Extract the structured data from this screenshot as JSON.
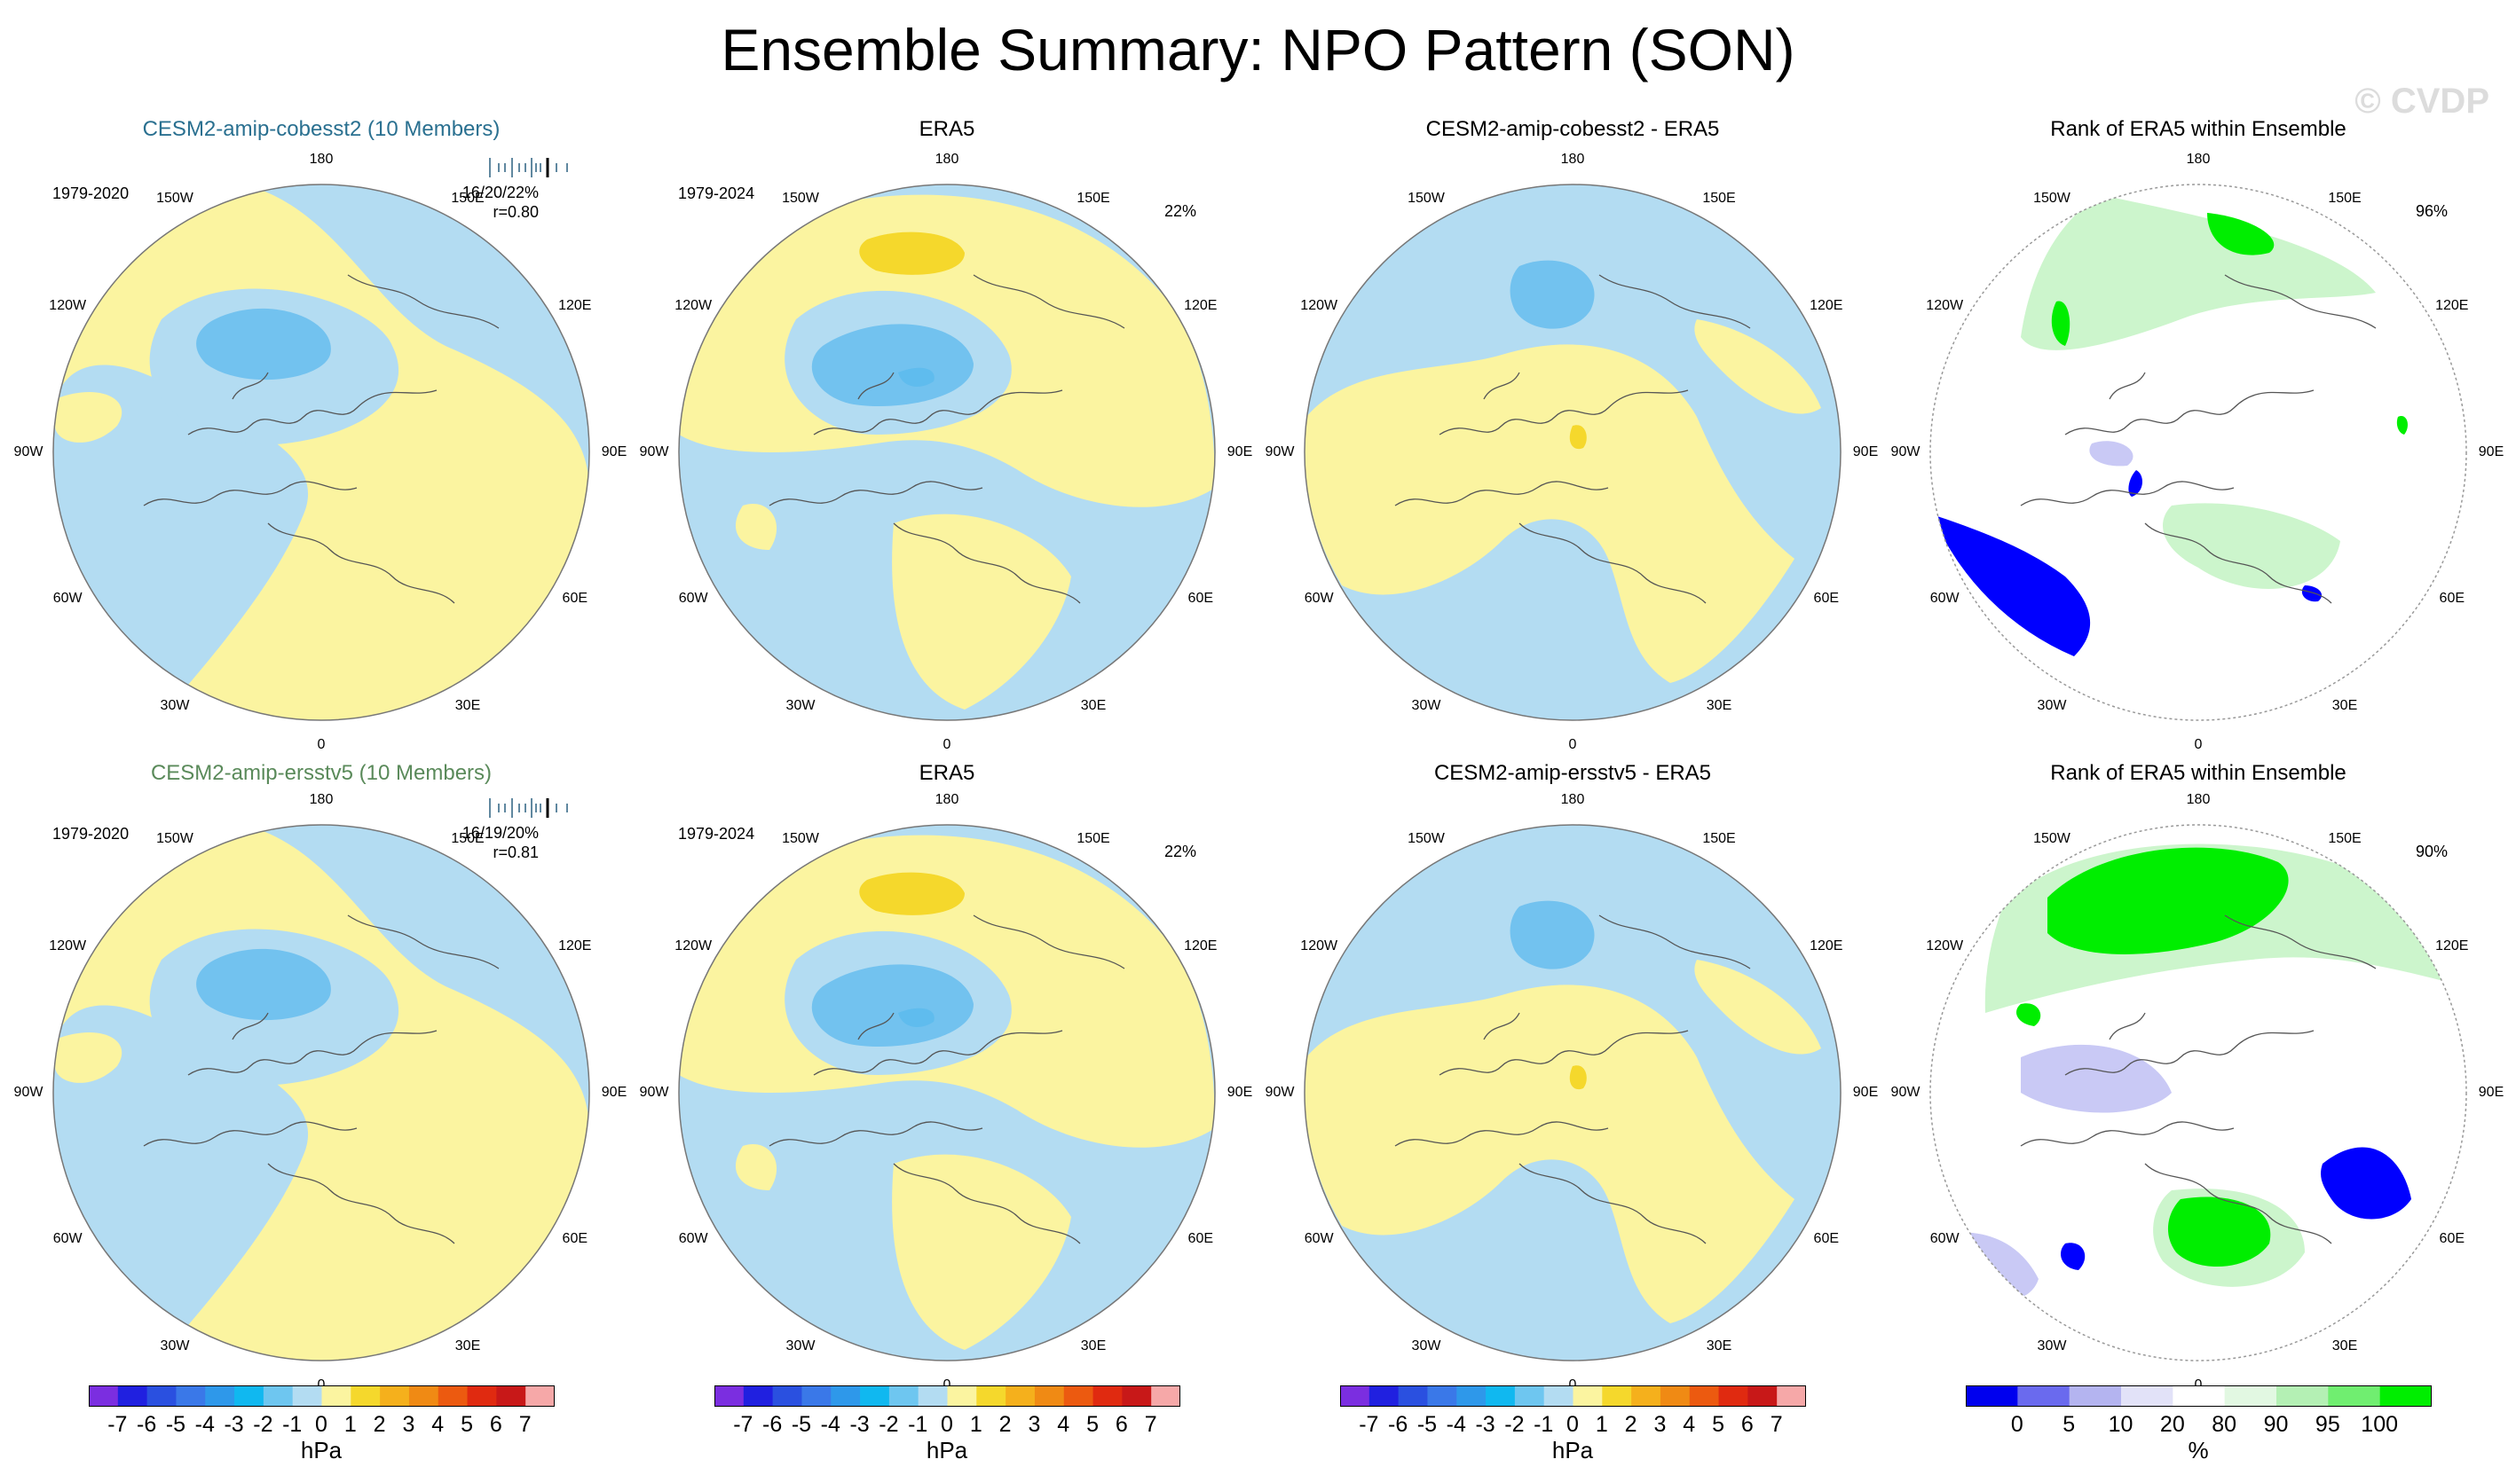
{
  "title": "Ensemble Summary: NPO Pattern (SON)",
  "watermark": "© CVDP",
  "colors": {
    "blue_title": "#2a7090",
    "green_title": "#5a8a5a",
    "land_line": "#555555",
    "bands": {
      "neg3": "#5fbcee",
      "neg2": "#72c2ef",
      "neg1": "#b3dcf2",
      "pos1": "#fbf4a0",
      "pos2": "#f5d82c",
      "rank_low": "#0000ff",
      "rank_low2": "#c9c9f5",
      "rank_high": "#ccf5cc",
      "rank_high2": "#00ee00"
    }
  },
  "lon_labels": [
    "180",
    "150E",
    "120E",
    "90E",
    "60E",
    "30E",
    "0",
    "30W",
    "60W",
    "90W",
    "120W",
    "150W"
  ],
  "rows": [
    {
      "panels": [
        {
          "title": "CESM2-amip-cobesst2 (10 Members)",
          "years": "1979-2020",
          "stat1": "16/20/22%",
          "stat2": "r=0.80"
        },
        {
          "title": "ERA5",
          "years": "1979-2024",
          "pct": "22%"
        },
        {
          "title": "CESM2-amip-cobesst2 - ERA5"
        },
        {
          "title": "Rank of ERA5 within Ensemble",
          "pct": "96%"
        }
      ]
    },
    {
      "panels": [
        {
          "title": "CESM2-amip-ersstv5 (10 Members)",
          "years": "1979-2020",
          "stat1": "16/19/20%",
          "stat2": "r=0.81"
        },
        {
          "title": "ERA5",
          "years": "1979-2024",
          "pct": "22%"
        },
        {
          "title": "CESM2-amip-ersstv5 - ERA5"
        },
        {
          "title": "Rank of ERA5 within Ensemble",
          "pct": "90%"
        }
      ]
    }
  ],
  "colorbars": {
    "hpa": {
      "ticks": [
        "-7",
        "-6",
        "-5",
        "-4",
        "-3",
        "-2",
        "-1",
        "0",
        "1",
        "2",
        "3",
        "4",
        "5",
        "6",
        "7"
      ],
      "colors": [
        "#7b2ee0",
        "#2020e0",
        "#2a50e0",
        "#3a78e8",
        "#2e98ea",
        "#10b8f0",
        "#6ec6f0",
        "#b3dcf2",
        "#fbf4a0",
        "#f5d82c",
        "#f5b01c",
        "#f08a14",
        "#ec5a10",
        "#e02a10",
        "#c81818",
        "#f6a8a8"
      ],
      "unit": "hPa"
    },
    "rank": {
      "ticks": [
        "0",
        "5",
        "10",
        "20",
        "80",
        "90",
        "95",
        "100"
      ],
      "colors": [
        "#0000ee",
        "#6a6aee",
        "#b4b4f0",
        "#e2e2f8",
        "#ffffff",
        "#e2f8e2",
        "#b4f0b4",
        "#70ee70",
        "#00ee00"
      ],
      "unit": "%"
    }
  }
}
